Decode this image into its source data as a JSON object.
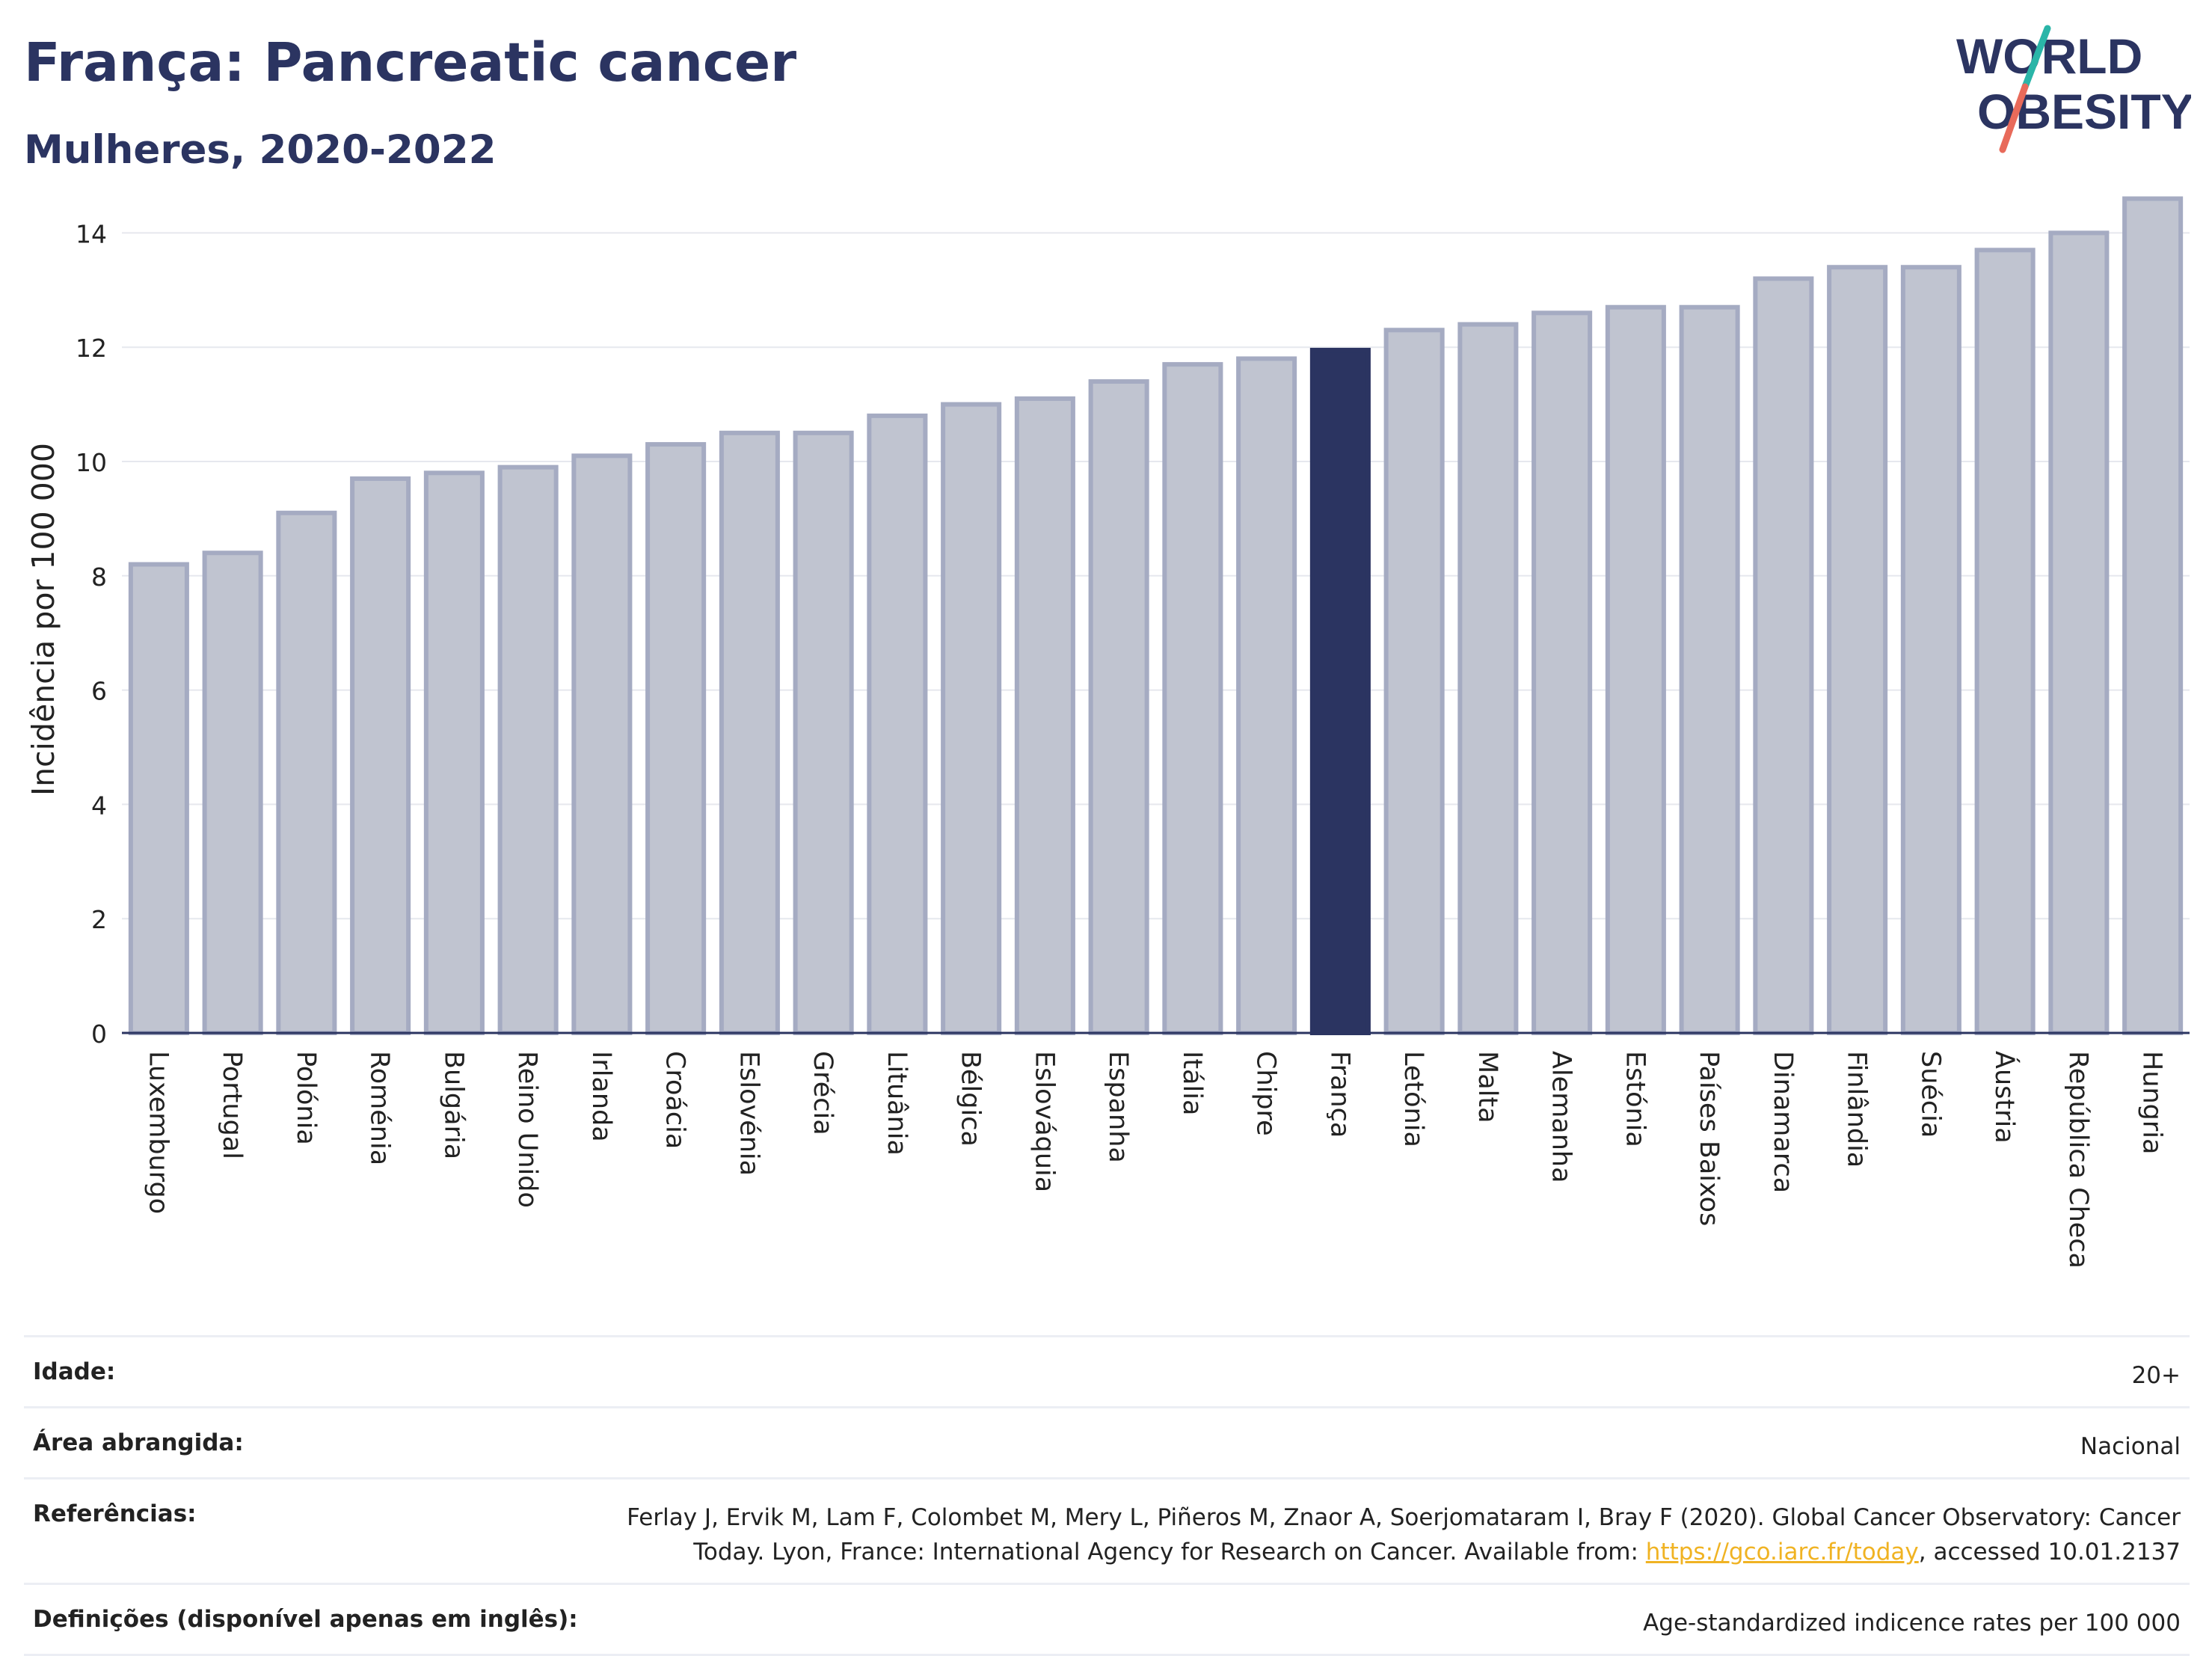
{
  "header": {
    "title": "França: Pancreatic cancer",
    "subtitle": "Mulheres, 2020-2022"
  },
  "logo": {
    "line1": "WORLD",
    "line2": "OBESITY"
  },
  "colors": {
    "bar": "#c0c4d0",
    "bar_border": "#a5abc2",
    "highlight": "#2b3461",
    "grid": "#e6e8ee",
    "axis": "#2b3461",
    "logo_text": "#2b3461",
    "logo_slash_top": "#2ab5a8",
    "logo_slash_bottom": "#e86a5a"
  },
  "chart_data": {
    "type": "bar",
    "ylabel": "Incidência por 100 000",
    "ylim": [
      0,
      15
    ],
    "yticks": [
      0,
      2,
      4,
      6,
      8,
      10,
      12,
      14
    ],
    "highlight": "França",
    "categories": [
      "Luxemburgo",
      "Portugal",
      "Polónia",
      "Roménia",
      "Bulgária",
      "Reino Unido",
      "Irlanda",
      "Croácia",
      "Eslovénia",
      "Grécia",
      "Lituânia",
      "Bélgica",
      "Eslováquia",
      "Espanha",
      "Itália",
      "Chipre",
      "França",
      "Letónia",
      "Malta",
      "Alemanha",
      "Estónia",
      "Países Baixos",
      "Dinamarca",
      "Finlândia",
      "Suécia",
      "Áustria",
      "República Checa",
      "Hungria"
    ],
    "values": [
      8.2,
      8.4,
      9.1,
      9.7,
      9.8,
      9.9,
      10.1,
      10.3,
      10.5,
      10.5,
      10.8,
      11.0,
      11.1,
      11.4,
      11.7,
      11.8,
      11.95,
      12.3,
      12.4,
      12.6,
      12.7,
      12.7,
      13.2,
      13.4,
      13.4,
      13.7,
      14.0,
      14.6
    ],
    "grid": true
  },
  "footer": {
    "rows": [
      {
        "label": "Idade:",
        "value": "20+"
      },
      {
        "label": "Área abrangida:",
        "value": "Nacional"
      },
      {
        "label": "Referências:",
        "value_line1": "Ferlay J, Ervik M, Lam F, Colombet M, Mery L, Piñeros M, Znaor A, Soerjomataram I, Bray F (2020). Global Cancer Observatory: Cancer",
        "value_pre": "Today. Lyon, France: International Agency for Research on Cancer. Available from: ",
        "link": "https://gco.iarc.fr/today",
        "value_post": ", accessed 10.01.2137"
      },
      {
        "label": "Definições (disponível apenas em inglês):",
        "value": "Age-standardized indicence rates per 100 000"
      }
    ]
  }
}
